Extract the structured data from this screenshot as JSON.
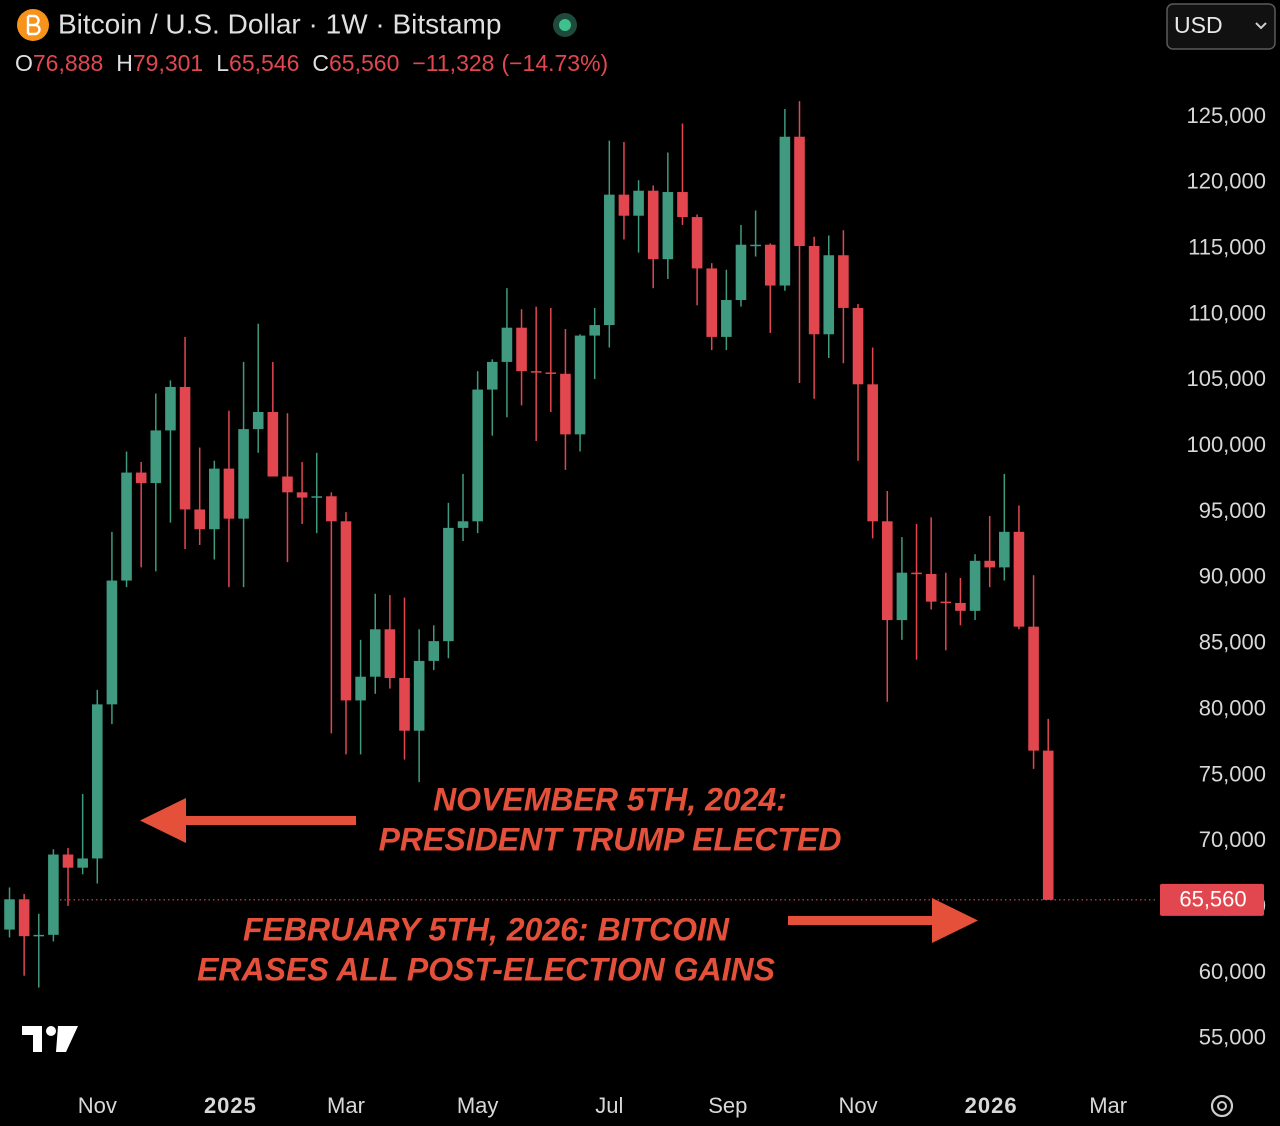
{
  "chart_data": {
    "type": "candlestick",
    "title": "Bitcoin / U.S. Dollar · 1W · Bitstamp",
    "currency": "USD",
    "header": {
      "keys": [
        "O",
        "H",
        "L",
        "C"
      ],
      "values": [
        76888,
        79301,
        65546,
        65560
      ],
      "value_labels": [
        "76,888",
        "79,301",
        "65,546",
        "65,560"
      ],
      "change": -11328,
      "change_label": "−11,328",
      "change_pct": -14.73,
      "change_pct_label": "(−14.73%)"
    },
    "last_price": {
      "value": 65560,
      "label": "65,560"
    },
    "up_color": "#3f9a80",
    "down_color": "#e2474f",
    "categories": [
      null,
      null,
      null,
      null,
      null,
      null,
      null,
      null,
      null,
      null,
      null,
      null,
      null,
      null,
      null,
      null,
      null,
      null,
      null,
      null,
      null,
      null,
      null,
      null,
      null,
      null,
      null,
      null,
      null,
      null,
      null,
      null,
      null,
      null,
      null,
      null,
      null,
      null,
      null,
      null,
      null,
      null,
      null,
      null,
      null,
      null,
      null,
      null,
      null,
      null,
      null,
      null,
      null,
      null,
      null,
      null,
      null,
      null,
      null,
      null,
      null,
      null,
      null,
      null,
      null,
      null,
      null,
      null,
      null,
      null,
      null,
      null
    ],
    "open": [
      63300,
      65600,
      62800,
      62900,
      69000,
      68000,
      68700,
      80400,
      89800,
      98000,
      97200,
      101200,
      104500,
      95200,
      93700,
      98300,
      94500,
      101300,
      102600,
      97700,
      96500,
      96100,
      96200,
      94300,
      80700,
      82500,
      86100,
      82400,
      78400,
      83700,
      85200,
      93800,
      94300,
      104300,
      106400,
      109000,
      105700,
      105600,
      105500,
      100900,
      108400,
      109200,
      119100,
      117500,
      119400,
      114200,
      119300,
      117400,
      113500,
      108300,
      111100,
      115300,
      115300,
      112200,
      123500,
      115200,
      108500,
      114500,
      110500,
      104700,
      94300,
      86800,
      90400,
      90300,
      88200,
      88100,
      87500,
      91300,
      90800,
      93500,
      86300,
      76888
    ],
    "high": [
      66500,
      66000,
      64500,
      69400,
      69500,
      73600,
      81500,
      93500,
      99600,
      98800,
      104000,
      105000,
      108300,
      99900,
      98900,
      102700,
      106400,
      109300,
      106400,
      102500,
      98800,
      99500,
      96500,
      95000,
      85300,
      88800,
      88700,
      88500,
      86100,
      86400,
      95700,
      97900,
      105700,
      106600,
      112000,
      110400,
      110600,
      110500,
      108900,
      108500,
      110500,
      123200,
      123100,
      120200,
      119800,
      122300,
      124500,
      117600,
      113900,
      113400,
      116800,
      117900,
      115400,
      125600,
      126200,
      115900,
      116000,
      116400,
      110800,
      107500,
      96600,
      93100,
      94100,
      94600,
      90400,
      90000,
      91800,
      94700,
      97900,
      95500,
      90200,
      79301
    ],
    "low": [
      62700,
      59800,
      58900,
      62400,
      65100,
      67500,
      66800,
      78900,
      89300,
      90800,
      90500,
      94200,
      92200,
      92500,
      91400,
      89300,
      89300,
      99500,
      97800,
      91200,
      94100,
      93400,
      78200,
      76600,
      76600,
      81200,
      81600,
      76200,
      74500,
      83000,
      83900,
      92800,
      93400,
      100800,
      102200,
      103100,
      100400,
      102600,
      98200,
      99600,
      105100,
      107500,
      115700,
      114700,
      112000,
      112700,
      116800,
      110700,
      107300,
      107300,
      110600,
      114400,
      108600,
      111800,
      104800,
      103600,
      106700,
      106300,
      98900,
      93000,
      80600,
      85300,
      83800,
      87600,
      84500,
      86400,
      86800,
      89300,
      89800,
      86100,
      75500,
      65546
    ],
    "close": [
      65600,
      62800,
      62900,
      69000,
      68000,
      68700,
      80400,
      89800,
      98000,
      97200,
      101200,
      104500,
      95200,
      93700,
      98300,
      94500,
      101300,
      102600,
      97700,
      96500,
      96100,
      96200,
      94300,
      80700,
      82500,
      86100,
      82400,
      78400,
      83700,
      85200,
      93800,
      94300,
      104300,
      106400,
      109000,
      105700,
      105600,
      105500,
      100900,
      108400,
      109200,
      119100,
      117500,
      119400,
      114200,
      119300,
      117400,
      113500,
      108300,
      111100,
      115300,
      115300,
      112200,
      123500,
      115200,
      108500,
      114500,
      110500,
      104700,
      94300,
      86800,
      90400,
      90300,
      88200,
      88100,
      87500,
      91300,
      90800,
      93500,
      86300,
      76888,
      65560
    ],
    "xlim": [
      -0.65,
      78.3
    ],
    "xticks": [
      {
        "value": 6,
        "label": "Nov"
      },
      {
        "value": 15.1,
        "label": "2025"
      },
      {
        "value": 23,
        "label": "Mar"
      },
      {
        "value": 32,
        "label": "May"
      },
      {
        "value": 41,
        "label": "Jul"
      },
      {
        "value": 49.1,
        "label": "Sep"
      },
      {
        "value": 58,
        "label": "Nov"
      },
      {
        "value": 67.1,
        "label": "2026"
      },
      {
        "value": 75.1,
        "label": "Mar"
      }
    ],
    "ylim": [
      51500,
      133880
    ],
    "yticks": [
      {
        "value": 55000,
        "label": "55,000"
      },
      {
        "value": 60000,
        "label": "60,000"
      },
      {
        "value": 65000,
        "label": "65,000"
      },
      {
        "value": 70000,
        "label": "70,000"
      },
      {
        "value": 75000,
        "label": "75,000"
      },
      {
        "value": 80000,
        "label": "80,000"
      },
      {
        "value": 85000,
        "label": "85,000"
      },
      {
        "value": 90000,
        "label": "90,000"
      },
      {
        "value": 95000,
        "label": "95,000"
      },
      {
        "value": 100000,
        "label": "100,000"
      },
      {
        "value": 105000,
        "label": "105,000"
      },
      {
        "value": 110000,
        "label": "110,000"
      },
      {
        "value": 115000,
        "label": "115,000"
      },
      {
        "value": 120000,
        "label": "120,000"
      },
      {
        "value": 125000,
        "label": "125,000"
      }
    ],
    "annotations": [
      {
        "lines": [
          "NOVEMBER 5TH, 2024:",
          "PRESIDENT TRUMP ELECTED"
        ],
        "color": "#e5503b"
      },
      {
        "lines": [
          "FEBRUARY 5TH, 2026: BITCOIN",
          "ERASES ALL POST-ELECTION GAINS"
        ],
        "color": "#e5503b"
      }
    ]
  }
}
